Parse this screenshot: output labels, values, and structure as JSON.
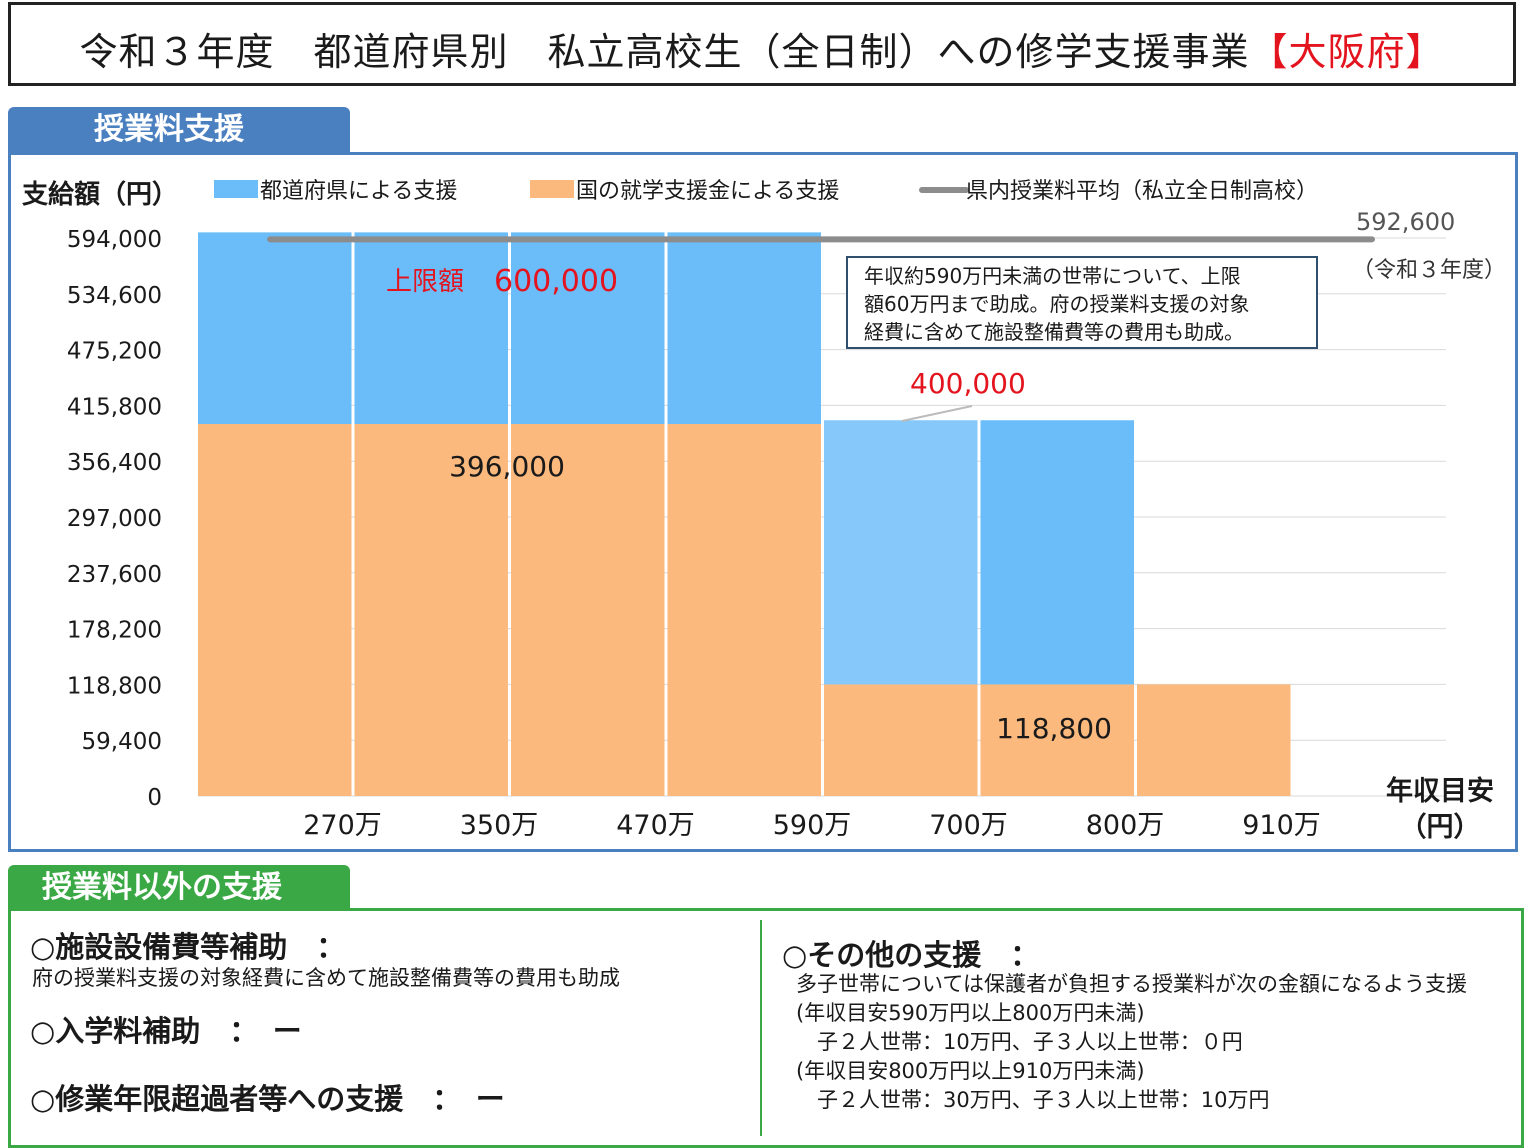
{
  "title": {
    "main": "令和３年度　都道府県別　私立高校生（全日制）への修学支援事業",
    "prefecture": "【大阪府】"
  },
  "tuition_section": {
    "tab_label": "授業料支援",
    "annotation": [
      "年収約590万円未満の世帯について、上限",
      "額60万円まで助成。府の授業料支援の対象",
      "経費に含めて施設整備費等の費用も助成。"
    ]
  },
  "chart_data": {
    "type": "bar",
    "stacked": true,
    "ylabel": "支給額（円）",
    "xlabel": "年収目安（円）",
    "ylim": [
      0,
      594000
    ],
    "yticks": [
      "594,000",
      "534,600",
      "475,200",
      "415,800",
      "356,400",
      "297,000",
      "237,600",
      "178,200",
      "118,800",
      "59,400",
      "0"
    ],
    "ytick_values": [
      594000,
      534600,
      475200,
      415800,
      356400,
      297000,
      237600,
      178200,
      118800,
      59400,
      0
    ],
    "categories": [
      "270万",
      "350万",
      "470万",
      "590万",
      "700万",
      "800万",
      "910万"
    ],
    "legend": {
      "pref": "都道府県による支援",
      "nat": "国の就学支援金による支援",
      "avg": "県内授業料平均（私立全日制高校）"
    },
    "series": [
      {
        "name": "国の就学支援金による支援",
        "color": "#fbb97e",
        "values": [
          396000,
          396000,
          396000,
          396000,
          118800,
          118800,
          118800
        ]
      },
      {
        "name": "都道府県による支援",
        "colors": [
          "#6bbdf9",
          "#6bbdf9",
          "#6bbdf9",
          "#6bbdf9",
          "#86c8fa",
          "#6bbdf9",
          "#6bbdf9"
        ],
        "values": [
          204000,
          204000,
          204000,
          204000,
          281200,
          281200,
          0
        ]
      }
    ],
    "average_line": {
      "value": 592600,
      "label": "592,600",
      "sublabel": "（令和３年度）",
      "color": "#8c8c8c"
    },
    "annotations": {
      "upper_limit_prefix": "上限額",
      "upper_limit_value": "600,000",
      "value_400k": "400,000",
      "value_396k": "396,000",
      "value_118k": "118,800"
    }
  },
  "other_section": {
    "tab_label": "授業料以外の支援",
    "facility": {
      "heading": "○施設設備費等補助　：",
      "desc": "府の授業料支援の対象経費に含めて施設整備費等の費用も助成"
    },
    "admission": {
      "heading": "○入学料補助　：　ー"
    },
    "over_limit": {
      "heading": "○修業年限超過者等への支援　：　ー"
    },
    "other": {
      "heading": "○その他の支援　：",
      "lines": [
        "多子世帯については保護者が負担する授業料が次の金額になるよう支援",
        "(年収目安590万円以上800万円未満)",
        "　子２人世帯：10万円、子３人以上世帯：０円",
        "(年収目安800万円以上910万円未満)",
        "　子２人世帯：30万円、子３人以上世帯：10万円"
      ]
    }
  },
  "colors": {
    "blue_tab": "#4a7fc0",
    "green_tab": "#3aa844",
    "red": "#e3141e",
    "orange": "#fbb97e",
    "light_blue": "#6bbdf9"
  }
}
